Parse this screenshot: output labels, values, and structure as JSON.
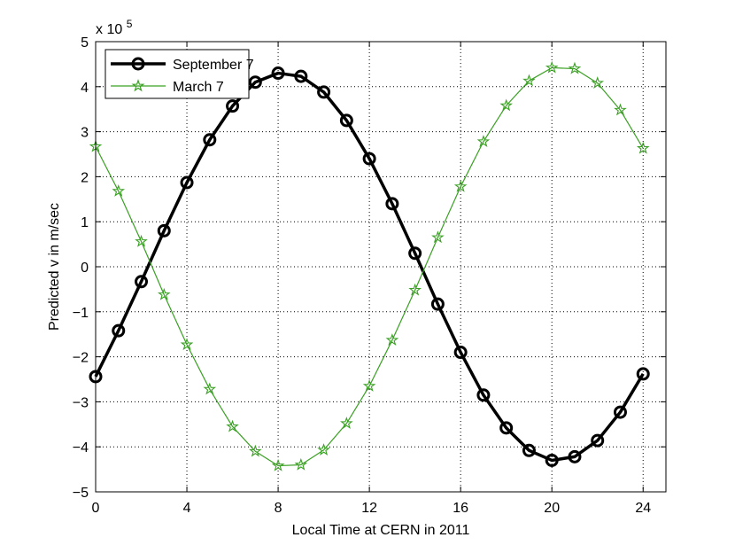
{
  "chart_data": {
    "type": "line",
    "xlabel": "Local Time at CERN in 2011",
    "ylabel": "Predicted v in m/sec",
    "xlim": [
      0,
      25
    ],
    "ylim": [
      -5,
      5
    ],
    "y_scale_label": "x 10",
    "y_scale_exponent": "5",
    "grid": true,
    "legend_position": "top-left",
    "x_ticks": [
      0,
      4,
      8,
      12,
      16,
      20,
      24
    ],
    "y_ticks": [
      -5,
      -4,
      -3,
      -2,
      -1,
      0,
      1,
      2,
      3,
      4,
      5
    ],
    "series": [
      {
        "name": "September 7",
        "color": "#000000",
        "marker": "circle",
        "x": [
          0,
          1,
          2,
          3,
          4,
          5,
          6,
          7,
          8,
          9,
          10,
          11,
          12,
          13,
          14,
          15,
          16,
          17,
          18,
          19,
          20,
          21,
          22,
          23,
          24
        ],
        "values": [
          -2.44,
          -1.42,
          -0.33,
          0.8,
          1.87,
          2.82,
          3.57,
          4.1,
          4.3,
          4.23,
          3.88,
          3.25,
          2.4,
          1.4,
          0.3,
          -0.83,
          -1.9,
          -2.85,
          -3.58,
          -4.08,
          -4.3,
          -4.22,
          -3.86,
          -3.23,
          -2.38
        ]
      },
      {
        "name": "March 7",
        "color": "#3aa023",
        "marker": "star",
        "x": [
          0,
          1,
          2,
          3,
          4,
          5,
          6,
          7,
          8,
          9,
          10,
          11,
          12,
          13,
          14,
          15,
          16,
          17,
          18,
          19,
          20,
          21,
          22,
          23,
          24
        ],
        "values": [
          2.67,
          1.68,
          0.56,
          -0.62,
          -1.73,
          -2.72,
          -3.55,
          -4.1,
          -4.42,
          -4.4,
          -4.07,
          -3.48,
          -2.65,
          -1.63,
          -0.52,
          0.65,
          1.78,
          2.78,
          3.58,
          4.13,
          4.42,
          4.4,
          4.08,
          3.48,
          2.63
        ]
      }
    ]
  }
}
